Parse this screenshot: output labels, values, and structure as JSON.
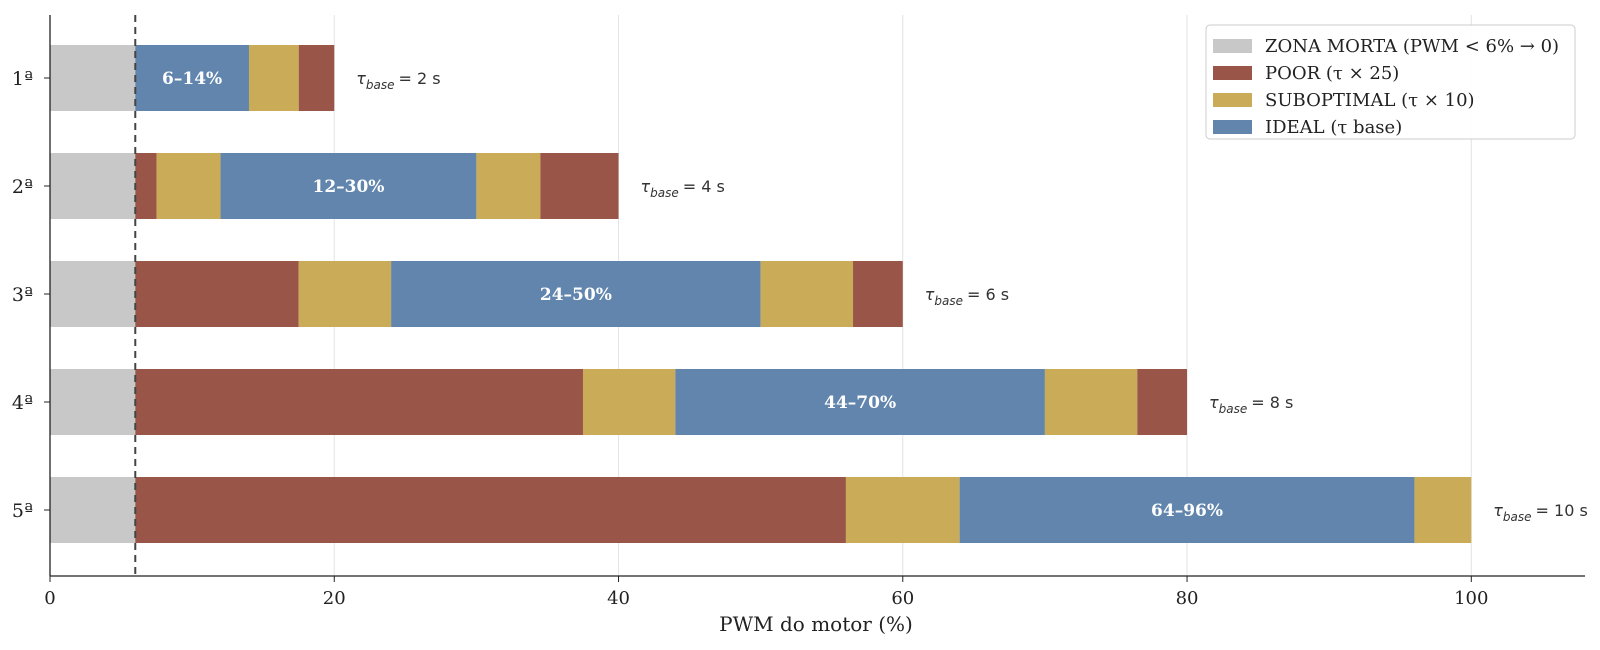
{
  "chart_data": {
    "type": "bar",
    "orientation": "horizontal",
    "stacked": true,
    "xlabel": "PWM do motor (%)",
    "ylabel": "",
    "title": "",
    "xlim": [
      0,
      108
    ],
    "xticks": [
      0,
      20,
      40,
      60,
      80,
      100
    ],
    "grid": "vertical",
    "dead_zone_line": 6,
    "colors": {
      "dead_zone": "#c8c8c8",
      "poor": "#9a5549",
      "suboptimal": "#c9ab58",
      "ideal": "#6185ad"
    },
    "legend": {
      "placement": "top-right",
      "entries": [
        {
          "key": "dead_zone",
          "label": "ZONA MORTA (PWM < 6% → 0)"
        },
        {
          "key": "poor",
          "label": "POOR (τ × 25)"
        },
        {
          "key": "suboptimal",
          "label": "SUBOPTIMAL (τ × 10)"
        },
        {
          "key": "ideal",
          "label": "IDEAL (τ base)"
        }
      ]
    },
    "categories": [
      {
        "label": "1ª",
        "tau_symbol": "τ",
        "tau_sub": "base",
        "tau_value": "= 2 s",
        "segments": [
          {
            "zone": "dead_zone",
            "start": 0,
            "end": 6
          },
          {
            "zone": "ideal",
            "start": 6,
            "end": 14,
            "label": "6–14%"
          },
          {
            "zone": "suboptimal",
            "start": 14,
            "end": 17.5
          },
          {
            "zone": "poor",
            "start": 17.5,
            "end": 20
          }
        ]
      },
      {
        "label": "2ª",
        "tau_symbol": "τ",
        "tau_sub": "base",
        "tau_value": "= 4 s",
        "segments": [
          {
            "zone": "dead_zone",
            "start": 0,
            "end": 6
          },
          {
            "zone": "poor",
            "start": 6,
            "end": 7.5
          },
          {
            "zone": "suboptimal",
            "start": 7.5,
            "end": 12
          },
          {
            "zone": "ideal",
            "start": 12,
            "end": 30,
            "label": "12–30%"
          },
          {
            "zone": "suboptimal",
            "start": 30,
            "end": 34.5
          },
          {
            "zone": "poor",
            "start": 34.5,
            "end": 40
          }
        ]
      },
      {
        "label": "3ª",
        "tau_symbol": "τ",
        "tau_sub": "base",
        "tau_value": "= 6 s",
        "segments": [
          {
            "zone": "dead_zone",
            "start": 0,
            "end": 6
          },
          {
            "zone": "poor",
            "start": 6,
            "end": 17.5
          },
          {
            "zone": "suboptimal",
            "start": 17.5,
            "end": 24
          },
          {
            "zone": "ideal",
            "start": 24,
            "end": 50,
            "label": "24–50%"
          },
          {
            "zone": "suboptimal",
            "start": 50,
            "end": 56.5
          },
          {
            "zone": "poor",
            "start": 56.5,
            "end": 60
          }
        ]
      },
      {
        "label": "4ª",
        "tau_symbol": "τ",
        "tau_sub": "base",
        "tau_value": "= 8 s",
        "segments": [
          {
            "zone": "dead_zone",
            "start": 0,
            "end": 6
          },
          {
            "zone": "poor",
            "start": 6,
            "end": 37.5
          },
          {
            "zone": "suboptimal",
            "start": 37.5,
            "end": 44
          },
          {
            "zone": "ideal",
            "start": 44,
            "end": 70,
            "label": "44–70%"
          },
          {
            "zone": "suboptimal",
            "start": 70,
            "end": 76.5
          },
          {
            "zone": "poor",
            "start": 76.5,
            "end": 80
          }
        ]
      },
      {
        "label": "5ª",
        "tau_symbol": "τ",
        "tau_sub": "base",
        "tau_value": "= 10 s",
        "segments": [
          {
            "zone": "dead_zone",
            "start": 0,
            "end": 6
          },
          {
            "zone": "poor",
            "start": 6,
            "end": 56
          },
          {
            "zone": "suboptimal",
            "start": 56,
            "end": 64
          },
          {
            "zone": "ideal",
            "start": 64,
            "end": 96,
            "label": "64–96%"
          },
          {
            "zone": "suboptimal",
            "start": 96,
            "end": 100
          }
        ]
      }
    ]
  }
}
